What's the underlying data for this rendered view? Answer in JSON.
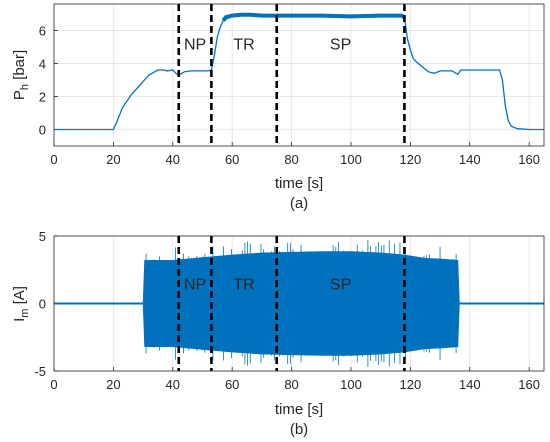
{
  "chart_data": [
    {
      "type": "line",
      "title": "",
      "xlabel": "time [s]",
      "ylabel": "P",
      "ylabel_sub": "h",
      "ylabel_unit": " [bar]",
      "caption": "(a)",
      "xlim": [
        0,
        165
      ],
      "ylim": [
        -1,
        7.6
      ],
      "xticks": [
        0,
        20,
        40,
        60,
        80,
        100,
        120,
        140,
        160
      ],
      "yticks": [
        0,
        2,
        4,
        6
      ],
      "grid": true,
      "line_color": "#0072bd",
      "series": [
        {
          "x": [
            0,
            20,
            21,
            23,
            26,
            29,
            32,
            35,
            37,
            38,
            40,
            41,
            42,
            44,
            46,
            48,
            50,
            52,
            53,
            54,
            55,
            56,
            57,
            58,
            60,
            63,
            66,
            70,
            75,
            80,
            90,
            100,
            110,
            117,
            118,
            119,
            120,
            121,
            122,
            124,
            126,
            128,
            130,
            134,
            136,
            137,
            139,
            142,
            146,
            150,
            151,
            152,
            153,
            154,
            156,
            160,
            165
          ],
          "y": [
            0,
            0,
            0.4,
            1.3,
            2.1,
            2.7,
            3.3,
            3.6,
            3.6,
            3.55,
            3.6,
            3.4,
            3.3,
            3.5,
            3.55,
            3.55,
            3.55,
            3.55,
            3.6,
            4.5,
            5.6,
            6.2,
            6.6,
            6.8,
            6.9,
            6.95,
            6.95,
            6.9,
            6.9,
            6.9,
            6.9,
            6.85,
            6.9,
            6.9,
            6.8,
            5.5,
            4.8,
            4.3,
            4.1,
            3.8,
            3.5,
            3.4,
            3.55,
            3.55,
            3.35,
            3.6,
            3.6,
            3.6,
            3.6,
            3.6,
            3.0,
            1.4,
            0.5,
            0.2,
            0.05,
            0,
            0
          ]
        }
      ],
      "markers": [
        {
          "x": 42
        },
        {
          "x": 53
        },
        {
          "x": 75
        },
        {
          "x": 118
        }
      ],
      "annotations": [
        {
          "text": "NP",
          "x": 47.5,
          "y": 5.2
        },
        {
          "text": "TR",
          "x": 64,
          "y": 5.2
        },
        {
          "text": "SP",
          "x": 96.5,
          "y": 5.2
        }
      ]
    },
    {
      "type": "line",
      "title": "",
      "xlabel": "time [s]",
      "ylabel": "I",
      "ylabel_sub": "m",
      "ylabel_unit": " [A]",
      "caption": "(b)",
      "xlim": [
        0,
        165
      ],
      "ylim": [
        -5,
        5
      ],
      "xticks": [
        0,
        20,
        40,
        60,
        80,
        100,
        120,
        140,
        160
      ],
      "yticks": [
        -5,
        0,
        5
      ],
      "grid": true,
      "line_color": "#0072bd",
      "series": [
        {
          "name": "",
          "envelope_x": [
            0,
            30,
            30.5,
            40,
            50,
            60,
            70,
            80,
            90,
            100,
            110,
            118,
            125,
            130,
            136,
            136.5,
            165
          ],
          "envelope_y": [
            0.05,
            0.05,
            3.2,
            3.2,
            3.4,
            3.6,
            3.75,
            3.8,
            3.85,
            3.85,
            3.75,
            3.6,
            3.35,
            3.3,
            3.2,
            0.05,
            0.05
          ]
        }
      ],
      "markers": [
        {
          "x": 42
        },
        {
          "x": 53
        },
        {
          "x": 75
        },
        {
          "x": 118
        }
      ],
      "annotations": [
        {
          "text": "NP",
          "x": 47.5,
          "y": 1.5
        },
        {
          "text": "TR",
          "x": 64,
          "y": 1.5
        },
        {
          "text": "SP",
          "x": 96.5,
          "y": 1.5
        }
      ]
    }
  ]
}
